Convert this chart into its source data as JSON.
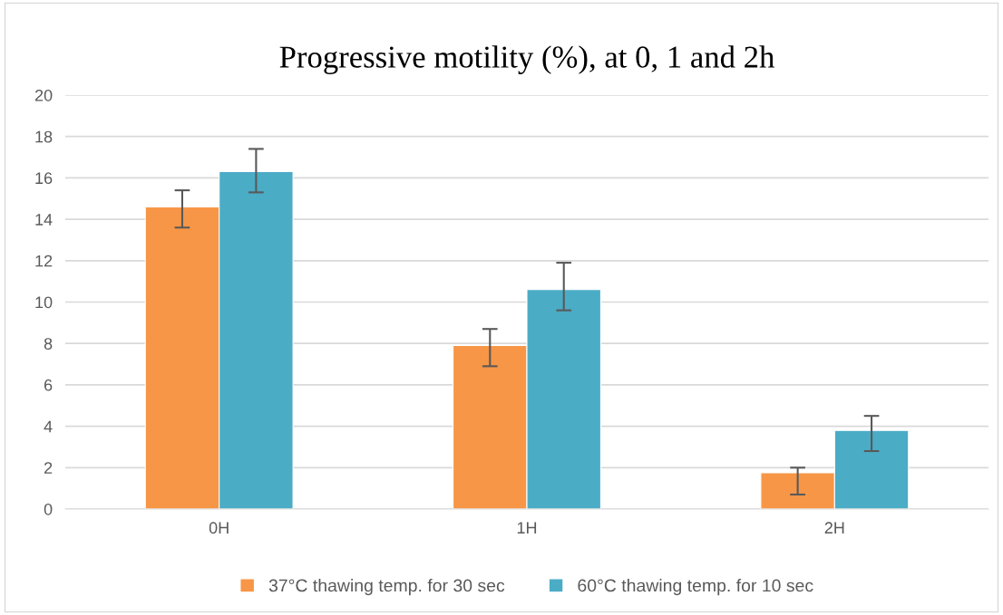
{
  "chart_data": {
    "type": "bar",
    "title": "Progressive motility (%), at 0, 1 and 2h",
    "categories": [
      "0H",
      "1H",
      "2H"
    ],
    "series": [
      {
        "name": "37°C thawing temp. for 30 sec",
        "color": "#f79646",
        "values": [
          14.6,
          7.9,
          1.75
        ],
        "errors": [
          [
            13.6,
            15.4
          ],
          [
            6.9,
            8.7
          ],
          [
            0.7,
            2.0
          ]
        ]
      },
      {
        "name": "60°C thawing temp. for 10 sec",
        "color": "#4bacc6",
        "values": [
          16.3,
          10.6,
          3.8
        ],
        "errors": [
          [
            15.3,
            17.4
          ],
          [
            9.6,
            11.9
          ],
          [
            2.8,
            4.5
          ]
        ]
      }
    ],
    "ylim": [
      0,
      20
    ],
    "yticks": [
      0,
      2,
      4,
      6,
      8,
      10,
      12,
      14,
      16,
      18,
      20
    ],
    "grid": "y",
    "legend": "bottom"
  }
}
